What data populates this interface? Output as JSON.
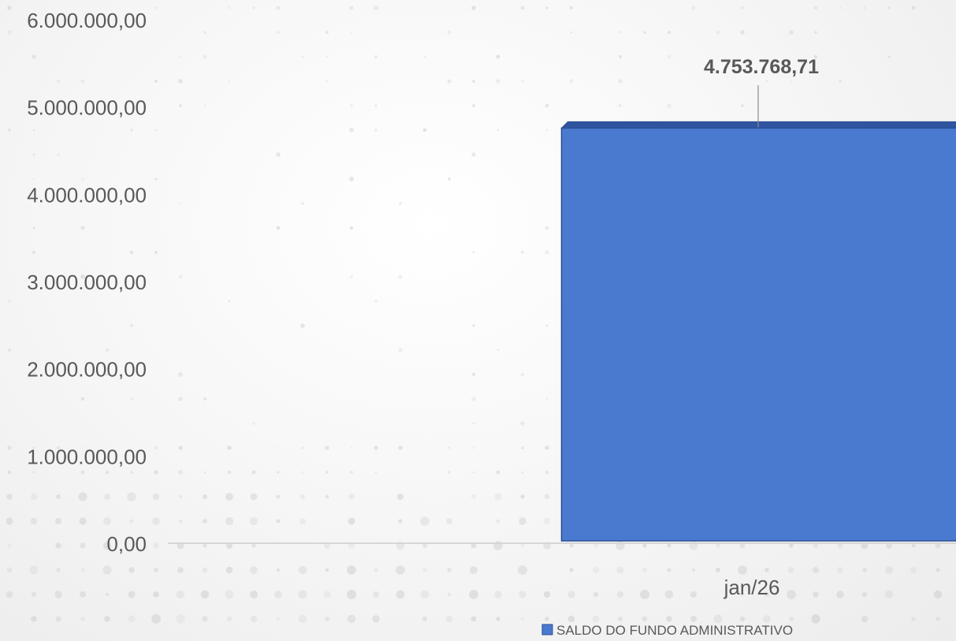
{
  "chart_data": {
    "type": "bar",
    "categories": [
      "jan/26"
    ],
    "series": [
      {
        "name": "SALDO DO FUNDO ADMINISTRATIVO",
        "values": [
          4753768.71
        ]
      }
    ],
    "data_labels": [
      "4.753.768,71"
    ],
    "y_tick_labels": [
      "0,00",
      "1.000.000,00",
      "2.000.000,00",
      "3.000.000,00",
      "4.000.000,00",
      "5.000.000,00",
      "6.000.000,00"
    ],
    "ylim": [
      0,
      6000000
    ],
    "grid": false,
    "legend": "bottom-center",
    "bar_color": "#4A7ACF",
    "bar_top_color": "#2F55A0",
    "axis_color": "#D6D6D6",
    "text_color": "#595959"
  }
}
